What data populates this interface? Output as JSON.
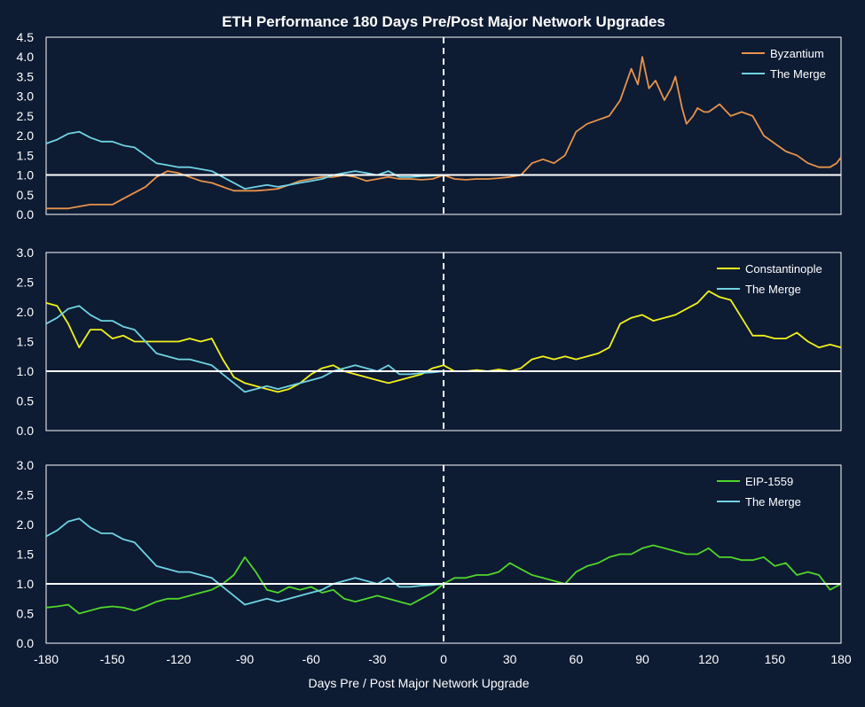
{
  "title": "ETH Performance 180 Days Pre/Post Major Network Upgrades",
  "xlabel": "Days Pre / Post Major Network Upgrade",
  "x_ticks": [
    "-180",
    "-150",
    "-120",
    "-90",
    "-60",
    "-30",
    "0",
    "30",
    "60",
    "90",
    "120",
    "150",
    "180"
  ],
  "chart_data": [
    {
      "type": "line",
      "xlim": [
        -180,
        180
      ],
      "ylim": [
        0,
        4.5
      ],
      "y_ticks": [
        "0.0",
        "0.5",
        "1.0",
        "1.5",
        "2.0",
        "2.5",
        "3.0",
        "3.5",
        "4.0",
        "4.5"
      ],
      "reference_line": 1.0,
      "vertical_line": 0,
      "legend_position": "top-right",
      "series": [
        {
          "name": "Byzantium",
          "color": "#e8934a",
          "x": [
            -180,
            -170,
            -160,
            -150,
            -145,
            -140,
            -135,
            -130,
            -125,
            -120,
            -115,
            -110,
            -105,
            -100,
            -95,
            -90,
            -85,
            -80,
            -75,
            -70,
            -65,
            -60,
            -55,
            -50,
            -45,
            -40,
            -35,
            -30,
            -25,
            -20,
            -15,
            -10,
            -5,
            0,
            5,
            10,
            15,
            20,
            25,
            30,
            35,
            40,
            45,
            50,
            55,
            60,
            65,
            70,
            75,
            80,
            85,
            88,
            90,
            93,
            96,
            100,
            103,
            105,
            108,
            110,
            113,
            115,
            118,
            120,
            125,
            130,
            135,
            140,
            145,
            150,
            155,
            160,
            165,
            170,
            175,
            178,
            180
          ],
          "y": [
            0.15,
            0.15,
            0.25,
            0.25,
            0.4,
            0.55,
            0.7,
            0.95,
            1.1,
            1.05,
            0.95,
            0.85,
            0.8,
            0.7,
            0.6,
            0.6,
            0.6,
            0.62,
            0.65,
            0.75,
            0.85,
            0.9,
            0.95,
            0.95,
            1.0,
            0.95,
            0.85,
            0.9,
            0.95,
            0.9,
            0.9,
            0.88,
            0.9,
            1.0,
            0.9,
            0.88,
            0.9,
            0.9,
            0.92,
            0.95,
            1.0,
            1.3,
            1.4,
            1.3,
            1.5,
            2.1,
            2.3,
            2.4,
            2.5,
            2.9,
            3.7,
            3.3,
            4.0,
            3.2,
            3.4,
            2.9,
            3.2,
            3.5,
            2.7,
            2.3,
            2.5,
            2.7,
            2.6,
            2.6,
            2.8,
            2.5,
            2.6,
            2.5,
            2.0,
            1.8,
            1.6,
            1.5,
            1.3,
            1.2,
            1.2,
            1.3,
            1.45
          ]
        },
        {
          "name": "The Merge",
          "color": "#6ed3e2",
          "x": [
            -180,
            -175,
            -170,
            -165,
            -160,
            -155,
            -150,
            -145,
            -140,
            -135,
            -130,
            -125,
            -120,
            -115,
            -110,
            -105,
            -100,
            -95,
            -90,
            -85,
            -80,
            -75,
            -70,
            -65,
            -60,
            -55,
            -50,
            -45,
            -40,
            -35,
            -30,
            -25,
            -20,
            -15,
            -10,
            -5,
            0
          ],
          "y": [
            1.8,
            1.9,
            2.05,
            2.1,
            1.95,
            1.85,
            1.85,
            1.75,
            1.7,
            1.5,
            1.3,
            1.25,
            1.2,
            1.2,
            1.15,
            1.1,
            0.95,
            0.8,
            0.65,
            0.7,
            0.75,
            0.7,
            0.75,
            0.8,
            0.85,
            0.9,
            1.0,
            1.05,
            1.1,
            1.05,
            1.0,
            1.1,
            0.95,
            0.95,
            0.97,
            0.98,
            1.0
          ]
        }
      ]
    },
    {
      "type": "line",
      "xlim": [
        -180,
        180
      ],
      "ylim": [
        0,
        3.0
      ],
      "y_ticks": [
        "0.0",
        "0.5",
        "1.0",
        "1.5",
        "2.0",
        "2.5",
        "3.0"
      ],
      "reference_line": 1.0,
      "vertical_line": 0,
      "legend_position": "top-right",
      "series": [
        {
          "name": "Constantinople",
          "color": "#f2f21a",
          "x": [
            -180,
            -175,
            -170,
            -165,
            -160,
            -155,
            -150,
            -145,
            -140,
            -135,
            -130,
            -125,
            -120,
            -115,
            -110,
            -105,
            -100,
            -95,
            -90,
            -85,
            -80,
            -75,
            -70,
            -65,
            -60,
            -55,
            -50,
            -45,
            -40,
            -35,
            -30,
            -25,
            -20,
            -15,
            -10,
            -5,
            0,
            5,
            10,
            15,
            20,
            25,
            30,
            35,
            40,
            45,
            50,
            55,
            60,
            65,
            70,
            75,
            80,
            85,
            90,
            95,
            100,
            105,
            110,
            115,
            120,
            125,
            130,
            135,
            140,
            145,
            150,
            155,
            160,
            165,
            170,
            175,
            180
          ],
          "y": [
            2.15,
            2.1,
            1.8,
            1.4,
            1.7,
            1.7,
            1.55,
            1.6,
            1.5,
            1.5,
            1.5,
            1.5,
            1.5,
            1.55,
            1.5,
            1.55,
            1.2,
            0.9,
            0.8,
            0.75,
            0.7,
            0.65,
            0.7,
            0.8,
            0.95,
            1.05,
            1.1,
            1.0,
            0.95,
            0.9,
            0.85,
            0.8,
            0.85,
            0.9,
            0.95,
            1.05,
            1.1,
            1.0,
            1.0,
            1.02,
            1.0,
            1.03,
            1.0,
            1.05,
            1.2,
            1.25,
            1.2,
            1.25,
            1.2,
            1.25,
            1.3,
            1.4,
            1.8,
            1.9,
            1.95,
            1.85,
            1.9,
            1.95,
            2.05,
            2.15,
            2.35,
            2.25,
            2.2,
            1.9,
            1.6,
            1.6,
            1.55,
            1.55,
            1.65,
            1.5,
            1.4,
            1.45,
            1.4
          ]
        },
        {
          "name": "The Merge",
          "color": "#6ed3e2",
          "x": [
            -180,
            -175,
            -170,
            -165,
            -160,
            -155,
            -150,
            -145,
            -140,
            -135,
            -130,
            -125,
            -120,
            -115,
            -110,
            -105,
            -100,
            -95,
            -90,
            -85,
            -80,
            -75,
            -70,
            -65,
            -60,
            -55,
            -50,
            -45,
            -40,
            -35,
            -30,
            -25,
            -20,
            -15,
            -10,
            -5,
            0
          ],
          "y": [
            1.8,
            1.9,
            2.05,
            2.1,
            1.95,
            1.85,
            1.85,
            1.75,
            1.7,
            1.5,
            1.3,
            1.25,
            1.2,
            1.2,
            1.15,
            1.1,
            0.95,
            0.8,
            0.65,
            0.7,
            0.75,
            0.7,
            0.75,
            0.8,
            0.85,
            0.9,
            1.0,
            1.05,
            1.1,
            1.05,
            1.0,
            1.1,
            0.95,
            0.95,
            0.97,
            0.98,
            1.0
          ]
        }
      ]
    },
    {
      "type": "line",
      "xlim": [
        -180,
        180
      ],
      "ylim": [
        0,
        3.0
      ],
      "y_ticks": [
        "0.0",
        "0.5",
        "1.0",
        "1.5",
        "2.0",
        "2.5",
        "3.0"
      ],
      "reference_line": 1.0,
      "vertical_line": 0,
      "legend_position": "top-right",
      "series": [
        {
          "name": "EIP-1559",
          "color": "#4fd629",
          "x": [
            -180,
            -175,
            -170,
            -165,
            -160,
            -155,
            -150,
            -145,
            -140,
            -135,
            -130,
            -125,
            -120,
            -115,
            -110,
            -105,
            -100,
            -95,
            -90,
            -85,
            -80,
            -75,
            -70,
            -65,
            -60,
            -55,
            -50,
            -45,
            -40,
            -35,
            -30,
            -25,
            -20,
            -15,
            -10,
            -5,
            0,
            5,
            10,
            15,
            20,
            25,
            30,
            35,
            40,
            45,
            50,
            55,
            60,
            65,
            70,
            75,
            80,
            85,
            90,
            95,
            100,
            105,
            110,
            115,
            120,
            125,
            130,
            135,
            140,
            145,
            150,
            155,
            160,
            165,
            170,
            175,
            180
          ],
          "y": [
            0.6,
            0.62,
            0.65,
            0.5,
            0.55,
            0.6,
            0.62,
            0.6,
            0.55,
            0.62,
            0.7,
            0.75,
            0.75,
            0.8,
            0.85,
            0.9,
            1.0,
            1.15,
            1.45,
            1.2,
            0.9,
            0.85,
            0.95,
            0.9,
            0.95,
            0.85,
            0.9,
            0.75,
            0.7,
            0.75,
            0.8,
            0.75,
            0.7,
            0.65,
            0.75,
            0.85,
            1.0,
            1.1,
            1.1,
            1.15,
            1.15,
            1.2,
            1.35,
            1.25,
            1.15,
            1.1,
            1.05,
            1.0,
            1.2,
            1.3,
            1.35,
            1.45,
            1.5,
            1.5,
            1.6,
            1.65,
            1.6,
            1.55,
            1.5,
            1.5,
            1.6,
            1.45,
            1.45,
            1.4,
            1.4,
            1.45,
            1.3,
            1.35,
            1.15,
            1.2,
            1.15,
            0.9,
            1.0
          ]
        },
        {
          "name": "The Merge",
          "color": "#6ed3e2",
          "x": [
            -180,
            -175,
            -170,
            -165,
            -160,
            -155,
            -150,
            -145,
            -140,
            -135,
            -130,
            -125,
            -120,
            -115,
            -110,
            -105,
            -100,
            -95,
            -90,
            -85,
            -80,
            -75,
            -70,
            -65,
            -60,
            -55,
            -50,
            -45,
            -40,
            -35,
            -30,
            -25,
            -20,
            -15,
            -10,
            -5,
            0
          ],
          "y": [
            1.8,
            1.9,
            2.05,
            2.1,
            1.95,
            1.85,
            1.85,
            1.75,
            1.7,
            1.5,
            1.3,
            1.25,
            1.2,
            1.2,
            1.15,
            1.1,
            0.95,
            0.8,
            0.65,
            0.7,
            0.75,
            0.7,
            0.75,
            0.8,
            0.85,
            0.9,
            1.0,
            1.05,
            1.1,
            1.05,
            1.0,
            1.1,
            0.95,
            0.95,
            0.97,
            0.98,
            1.0
          ]
        }
      ]
    }
  ]
}
